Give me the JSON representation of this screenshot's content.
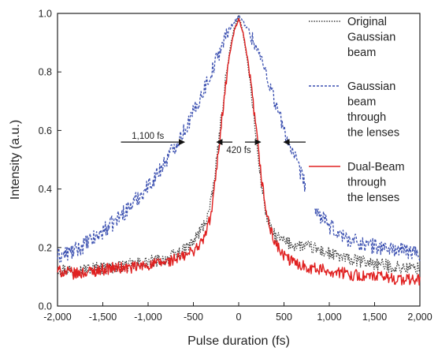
{
  "chart_data": {
    "type": "line",
    "title": "",
    "xlabel": "Pulse duration (fs)",
    "ylabel": "Intensity (a.u.)",
    "xlim": [
      -2000,
      2000
    ],
    "ylim": [
      0,
      1.0
    ],
    "x_ticks": [
      "-2,000",
      "-1,500",
      "-1,000",
      "-500",
      "0",
      "500",
      "1,000",
      "1,500",
      "2,000"
    ],
    "y_ticks": [
      "0.0",
      "0.2",
      "0.4",
      "0.6",
      "0.8",
      "1.0"
    ],
    "grid": false,
    "legend_position": "right",
    "series": [
      {
        "name": "Original Gaussian beam",
        "legend_lines": [
          "Original",
          "Gaussian",
          "beam"
        ],
        "color": "#333333",
        "style": "dotted",
        "x": [
          -2000,
          -1800,
          -1600,
          -1400,
          -1200,
          -1000,
          -800,
          -600,
          -500,
          -400,
          -350,
          -300,
          -250,
          -200,
          -150,
          -100,
          -50,
          0,
          50,
          100,
          150,
          200,
          250,
          300,
          350,
          400,
          500,
          600,
          800,
          1000,
          1200,
          1400,
          1600,
          1800,
          2000
        ],
        "y": [
          0.13,
          0.12,
          0.13,
          0.13,
          0.14,
          0.15,
          0.16,
          0.19,
          0.22,
          0.27,
          0.3,
          0.36,
          0.48,
          0.62,
          0.76,
          0.87,
          0.95,
          0.99,
          0.93,
          0.83,
          0.7,
          0.55,
          0.42,
          0.32,
          0.26,
          0.24,
          0.22,
          0.21,
          0.2,
          0.18,
          0.16,
          0.15,
          0.14,
          0.13,
          0.13
        ]
      },
      {
        "name": "Gaussian beam through the lenses",
        "legend_lines": [
          "Gaussian",
          "beam",
          "through",
          "the lenses"
        ],
        "color": "#3a4fb0",
        "style": "dashed",
        "x": [
          -2000,
          -1800,
          -1600,
          -1400,
          -1200,
          -1000,
          -900,
          -800,
          -700,
          -600,
          -500,
          -400,
          -300,
          -200,
          -100,
          0,
          100,
          200,
          300,
          400,
          500,
          600,
          700,
          800,
          900,
          1000,
          1200,
          1400,
          1600,
          1800,
          2000
        ],
        "y": [
          0.17,
          0.19,
          0.23,
          0.28,
          0.34,
          0.41,
          0.45,
          0.5,
          0.55,
          0.6,
          0.66,
          0.73,
          0.8,
          0.88,
          0.95,
          0.99,
          0.95,
          0.88,
          0.8,
          0.7,
          0.6,
          0.52,
          0.44,
          0.37,
          0.31,
          0.27,
          0.23,
          0.21,
          0.2,
          0.19,
          0.18
        ]
      },
      {
        "name": "Dual-Beam through the lenses",
        "legend_lines": [
          "Dual-Beam",
          "through",
          "the lenses"
        ],
        "color": "#e02020",
        "style": "solid",
        "x": [
          -2000,
          -1800,
          -1600,
          -1400,
          -1200,
          -1000,
          -800,
          -600,
          -500,
          -400,
          -350,
          -300,
          -250,
          -200,
          -150,
          -100,
          -50,
          0,
          50,
          100,
          150,
          200,
          250,
          300,
          350,
          400,
          450,
          500,
          600,
          800,
          1000,
          1200,
          1400,
          1600,
          1800,
          2000
        ],
        "y": [
          0.12,
          0.11,
          0.12,
          0.13,
          0.13,
          0.14,
          0.15,
          0.17,
          0.19,
          0.22,
          0.26,
          0.32,
          0.45,
          0.6,
          0.74,
          0.86,
          0.94,
          0.98,
          0.93,
          0.84,
          0.72,
          0.58,
          0.44,
          0.33,
          0.26,
          0.22,
          0.19,
          0.17,
          0.15,
          0.13,
          0.12,
          0.11,
          0.1,
          0.1,
          0.09,
          0.09
        ]
      }
    ],
    "annotations": [
      {
        "text": "1,100 fs",
        "y": 0.59,
        "arrow_left_x": [
          -1300,
          -600
        ],
        "arrow_right_x": [
          750,
          500
        ]
      },
      {
        "text": "420 fs",
        "y": 0.59,
        "span_x": [
          -240,
          240
        ]
      }
    ]
  }
}
